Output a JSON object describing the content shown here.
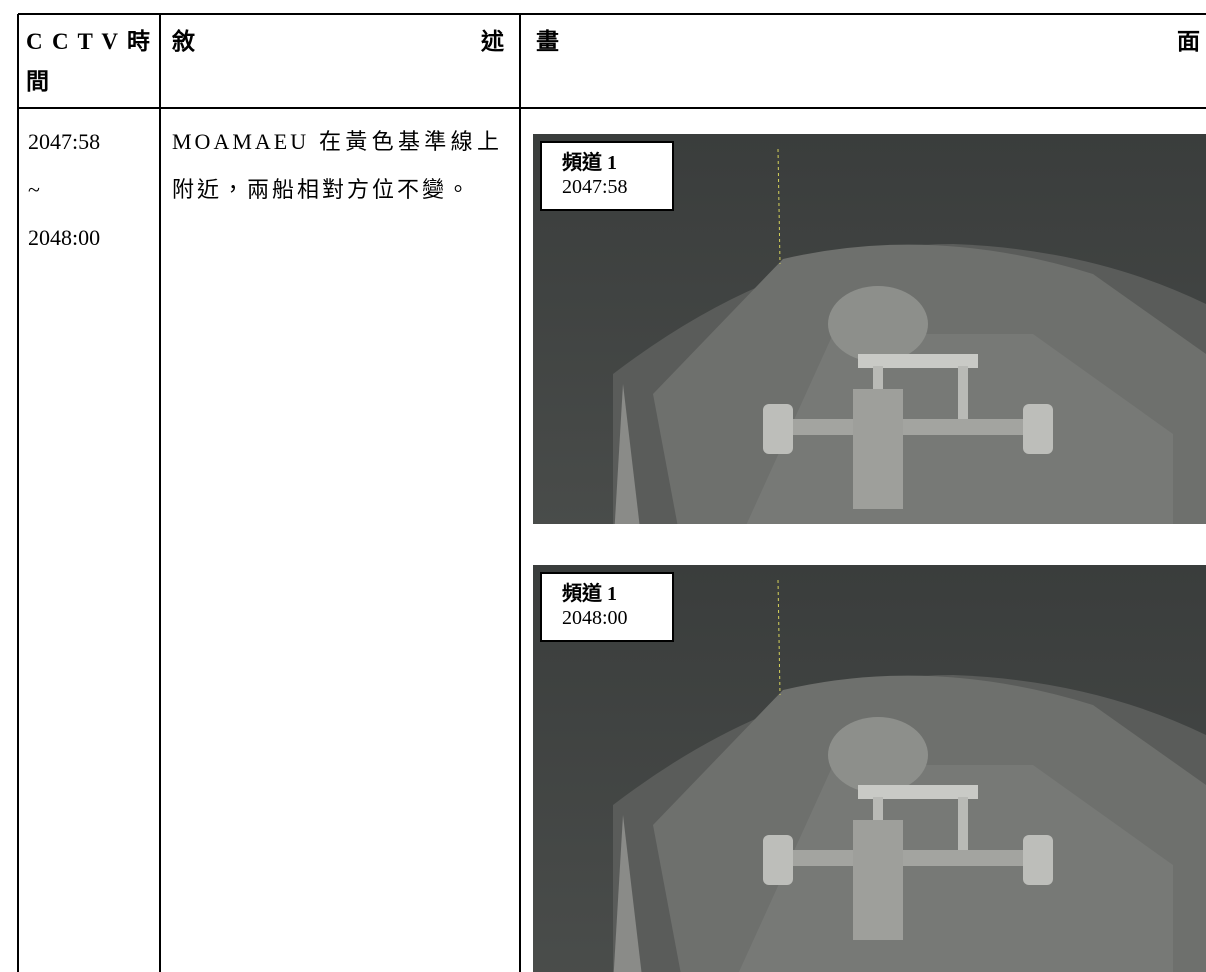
{
  "table": {
    "header": [
      "C C T V 時 間",
      "敘 述",
      "畫 面"
    ],
    "rows": [
      {
        "time": [
          "2047:58",
          "~",
          "2048:00"
        ],
        "description": "MOAMAEU 在黃色基準線上附近，兩船相對方位不變。",
        "frames": [
          {
            "channel": "頻道 1",
            "timestamp": "2047:58"
          },
          {
            "channel": "頻道 1",
            "timestamp": "2048:00"
          }
        ]
      }
    ]
  }
}
